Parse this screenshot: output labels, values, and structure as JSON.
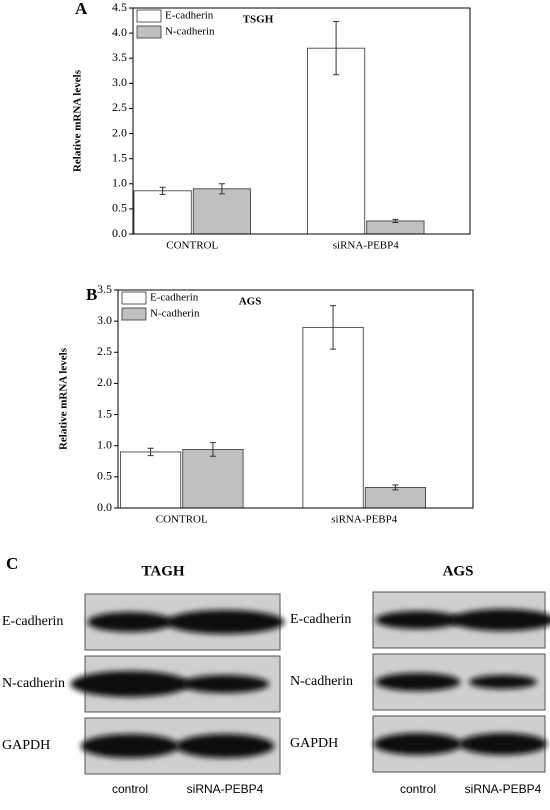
{
  "chart_data": [
    {
      "type": "bar",
      "panel": "A",
      "title": "TSGH",
      "ylabel": "Relative mRNA levels",
      "categories": [
        "CONTROL",
        "siRNA-PEBP4"
      ],
      "series": [
        {
          "name": "E-cadherin",
          "color": "#ffffff",
          "values": [
            0.86,
            3.7
          ],
          "errors": [
            0.07,
            0.53
          ]
        },
        {
          "name": "N-cadherin",
          "color": "#c0c0c0",
          "values": [
            0.9,
            0.26
          ],
          "errors": [
            0.1,
            0.03
          ]
        }
      ],
      "ylim": [
        0,
        4.5
      ],
      "yticks": [
        {
          "value": 0,
          "label": "0.0"
        },
        0.5,
        {
          "value": 1,
          "label": "1.0"
        },
        1.5,
        {
          "value": 2,
          "label": "2.0"
        },
        2.5,
        {
          "value": 3,
          "label": "3.0"
        },
        3.5,
        {
          "value": 4,
          "label": "4.0"
        },
        4.5
      ],
      "legend": "upper-left"
    },
    {
      "type": "bar",
      "panel": "B",
      "title": "AGS",
      "ylabel": "Relative mRNA levels",
      "categories": [
        "CONTROL",
        "siRNA-PEBP4"
      ],
      "series": [
        {
          "name": "E-cadherin",
          "color": "#ffffff",
          "values": [
            0.9,
            2.9
          ],
          "errors": [
            0.06,
            0.35
          ]
        },
        {
          "name": "N-cadherin",
          "color": "#c0c0c0",
          "values": [
            0.94,
            0.33
          ],
          "errors": [
            0.11,
            0.04
          ]
        }
      ],
      "ylim": [
        0,
        3.5
      ],
      "yticks": [
        {
          "value": 0,
          "label": "0.0"
        },
        0.5,
        {
          "value": 1,
          "label": "1.0"
        },
        1.5,
        {
          "value": 2,
          "label": "2.0"
        },
        2.5,
        {
          "value": 3,
          "label": "3.0"
        },
        3.5
      ],
      "legend": "upper-left"
    }
  ],
  "panel_c": {
    "label": "C",
    "blots": [
      {
        "title": "TAGH",
        "rows": [
          "E-cadherin",
          "N-cadherin",
          "GAPDH"
        ],
        "lanes": [
          "control",
          "siRNA-PEBP4"
        ]
      },
      {
        "title": "AGS",
        "rows": [
          "E-cadherin",
          "N-cadherin",
          "GAPDH"
        ],
        "lanes": [
          "control",
          "siRNA-PEBP4"
        ]
      }
    ]
  }
}
